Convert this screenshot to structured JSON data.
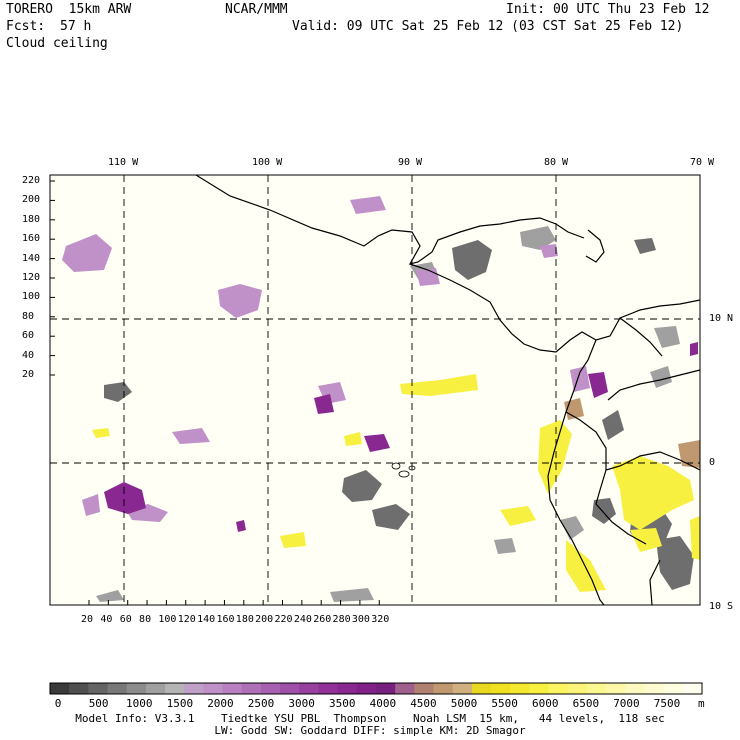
{
  "header": {
    "model": "TORERO  15km ARW",
    "org": "NCAR/MMM",
    "init": "Init: 00 UTC Thu 23 Feb 12",
    "fcst_label": "Fcst:",
    "fcst_value": "57 h",
    "valid": "Valid: 09 UTC Sat 25 Feb 12 (03 CST Sat 25 Feb 12)",
    "field": "Cloud ceiling"
  },
  "map": {
    "lon_labels": [
      "110 W",
      "100 W",
      "90 W",
      "80 W",
      "70 W"
    ],
    "lat_labels": [
      "10 N",
      "0",
      "10 S"
    ],
    "y_ticks": [
      "220",
      "200",
      "180",
      "160",
      "140",
      "120",
      "100",
      "80",
      "60",
      "40",
      "20"
    ],
    "x_ticks": [
      "20",
      "40",
      "60",
      "80",
      "100",
      "120",
      "140",
      "160",
      "180",
      "200",
      "220",
      "240",
      "260",
      "280",
      "300",
      "320"
    ],
    "background_color": "#fffff5"
  },
  "colorbar": {
    "labels": [
      "0",
      "500",
      "1000",
      "1500",
      "2000",
      "2500",
      "3000",
      "3500",
      "4000",
      "4500",
      "5000",
      "5500",
      "6000",
      "6500",
      "7000",
      "7500"
    ],
    "unit": "m",
    "colors": [
      "#3a3a3a",
      "#505050",
      "#646464",
      "#787878",
      "#8c8c8c",
      "#a0a0a0",
      "#b4b4b4",
      "#c0a0c8",
      "#c090c8",
      "#b880c0",
      "#b070b8",
      "#a860b0",
      "#a050a8",
      "#9840a0",
      "#903098",
      "#882890",
      "#802088",
      "#782080",
      "#a0608c",
      "#b08070",
      "#c09870",
      "#d0b080",
      "#e8d820",
      "#f0e020",
      "#f4e830",
      "#f8f040",
      "#fcf460",
      "#fcf478",
      "#fcf890",
      "#fcf8a8",
      "#fcfac0",
      "#fcfcd0",
      "#fefee0",
      "#fffff0"
    ]
  },
  "footer": {
    "line1": "Model Info: V3.3.1    Tiedtke YSU PBL  Thompson    Noah LSM  15 km,   44 levels,  118 sec",
    "line2": "LW: Godd SW: Goddard DIFF: simple KM: 2D Smagor"
  }
}
